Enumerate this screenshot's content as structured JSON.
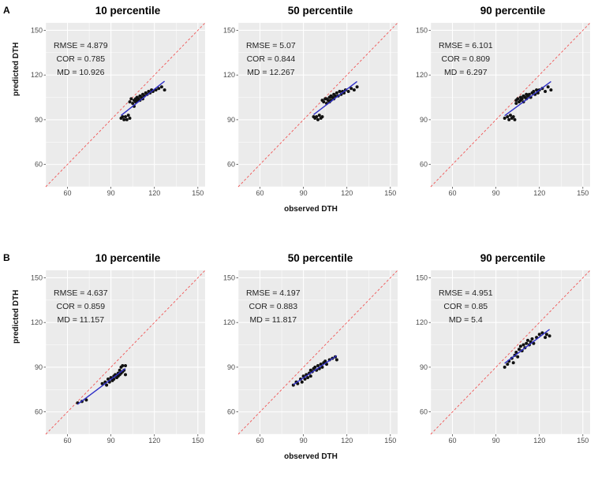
{
  "figure": {
    "rows": [
      {
        "label": "A",
        "ylabel": "predicted DTH",
        "xlabel": "observed DTH"
      },
      {
        "label": "B",
        "ylabel": "predicted DTH",
        "xlabel": "observed DTH"
      }
    ]
  },
  "chart_common": {
    "type": "scatter",
    "xlim": [
      45,
      155
    ],
    "ylim": [
      45,
      155
    ],
    "ticks": [
      60,
      90,
      120,
      150
    ],
    "minor_ticks": [
      45,
      75,
      105,
      135
    ],
    "grid": true,
    "xlabel": "observed DTH",
    "ylabel": "predicted DTH",
    "colors": {
      "panel_bg": "#ebebeb",
      "grid": "#ffffff",
      "point": "#111111",
      "fit_line": "#2e2ec7",
      "identity_line": "#f05555",
      "tick_label": "#4d4d4d"
    }
  },
  "chart_data": [
    {
      "row": "A",
      "title": "10 percentile",
      "stats": {
        "rmse": "RMSE = 4.879",
        "cor": "COR = 0.785",
        "md": "MD = 10.926"
      },
      "points": [
        [
          97,
          91
        ],
        [
          98,
          92
        ],
        [
          99,
          90
        ],
        [
          100,
          92
        ],
        [
          101,
          90
        ],
        [
          102,
          93
        ],
        [
          103,
          91
        ],
        [
          103,
          102
        ],
        [
          104,
          104
        ],
        [
          105,
          101
        ],
        [
          106,
          103
        ],
        [
          106,
          99
        ],
        [
          107,
          104
        ],
        [
          107,
          102
        ],
        [
          108,
          105
        ],
        [
          108,
          103
        ],
        [
          109,
          104
        ],
        [
          110,
          106
        ],
        [
          110,
          103
        ],
        [
          111,
          105
        ],
        [
          112,
          107
        ],
        [
          112,
          104
        ],
        [
          113,
          106
        ],
        [
          114,
          108
        ],
        [
          115,
          107
        ],
        [
          116,
          109
        ],
        [
          117,
          108
        ],
        [
          118,
          110
        ],
        [
          119,
          109
        ],
        [
          121,
          110
        ],
        [
          123,
          111
        ],
        [
          125,
          112
        ],
        [
          127,
          110
        ]
      ]
    },
    {
      "row": "A",
      "title": "50 percentile",
      "stats": {
        "rmse": "RMSE = 5.07",
        "cor": "COR = 0.844",
        "md": "MD = 12.267"
      },
      "points": [
        [
          97,
          92
        ],
        [
          98,
          91
        ],
        [
          99,
          92
        ],
        [
          100,
          90
        ],
        [
          101,
          93
        ],
        [
          102,
          91
        ],
        [
          103,
          92
        ],
        [
          103,
          103
        ],
        [
          104,
          102
        ],
        [
          105,
          104
        ],
        [
          106,
          101
        ],
        [
          106,
          104
        ],
        [
          107,
          103
        ],
        [
          108,
          105
        ],
        [
          108,
          102
        ],
        [
          109,
          106
        ],
        [
          109,
          103
        ],
        [
          110,
          105
        ],
        [
          111,
          107
        ],
        [
          111,
          104
        ],
        [
          112,
          106
        ],
        [
          113,
          108
        ],
        [
          114,
          106
        ],
        [
          115,
          109
        ],
        [
          116,
          107
        ],
        [
          117,
          109
        ],
        [
          118,
          108
        ],
        [
          119,
          110
        ],
        [
          121,
          109
        ],
        [
          123,
          111
        ],
        [
          125,
          110
        ],
        [
          127,
          112
        ]
      ]
    },
    {
      "row": "A",
      "title": "90 percentile",
      "stats": {
        "rmse": "RMSE = 6.101",
        "cor": "COR = 0.809",
        "md": "MD = 6.297"
      },
      "points": [
        [
          96,
          91
        ],
        [
          98,
          92
        ],
        [
          99,
          90
        ],
        [
          100,
          93
        ],
        [
          101,
          91
        ],
        [
          102,
          92
        ],
        [
          103,
          90
        ],
        [
          104,
          103
        ],
        [
          104,
          101
        ],
        [
          105,
          104
        ],
        [
          106,
          102
        ],
        [
          107,
          105
        ],
        [
          107,
          103
        ],
        [
          108,
          104
        ],
        [
          109,
          106
        ],
        [
          109,
          102
        ],
        [
          110,
          105
        ],
        [
          111,
          107
        ],
        [
          111,
          104
        ],
        [
          112,
          106
        ],
        [
          113,
          107
        ],
        [
          114,
          105
        ],
        [
          115,
          108
        ],
        [
          116,
          109
        ],
        [
          117,
          107
        ],
        [
          118,
          110
        ],
        [
          119,
          108
        ],
        [
          120,
          110
        ],
        [
          122,
          111
        ],
        [
          124,
          109
        ],
        [
          126,
          112
        ],
        [
          128,
          110
        ]
      ]
    },
    {
      "row": "B",
      "title": "10 percentile",
      "stats": {
        "rmse": "RMSE = 4.637",
        "cor": "COR = 0.859",
        "md": "MD = 11.157"
      },
      "points": [
        [
          67,
          66
        ],
        [
          70,
          67
        ],
        [
          73,
          68
        ],
        [
          84,
          79
        ],
        [
          86,
          80
        ],
        [
          87,
          78
        ],
        [
          88,
          82
        ],
        [
          89,
          80
        ],
        [
          90,
          83
        ],
        [
          91,
          81
        ],
        [
          92,
          84
        ],
        [
          92,
          82
        ],
        [
          93,
          85
        ],
        [
          94,
          83
        ],
        [
          95,
          86
        ],
        [
          95,
          84
        ],
        [
          96,
          88
        ],
        [
          96,
          85
        ],
        [
          97,
          90
        ],
        [
          97,
          86
        ],
        [
          98,
          91
        ],
        [
          98,
          87
        ],
        [
          99,
          88
        ],
        [
          100,
          85
        ],
        [
          100,
          91
        ]
      ]
    },
    {
      "row": "B",
      "title": "50 percentile",
      "stats": {
        "rmse": "RMSE = 4.197",
        "cor": "COR = 0.883",
        "md": "MD = 11.817"
      },
      "points": [
        [
          83,
          78
        ],
        [
          85,
          80
        ],
        [
          86,
          79
        ],
        [
          88,
          82
        ],
        [
          89,
          80
        ],
        [
          90,
          84
        ],
        [
          91,
          82
        ],
        [
          92,
          85
        ],
        [
          93,
          83
        ],
        [
          94,
          86
        ],
        [
          95,
          84
        ],
        [
          95,
          88
        ],
        [
          96,
          87
        ],
        [
          97,
          89
        ],
        [
          98,
          90
        ],
        [
          99,
          88
        ],
        [
          100,
          91
        ],
        [
          101,
          89
        ],
        [
          102,
          92
        ],
        [
          103,
          90
        ],
        [
          104,
          93
        ],
        [
          105,
          94
        ],
        [
          106,
          92
        ],
        [
          108,
          95
        ],
        [
          110,
          96
        ],
        [
          112,
          97
        ],
        [
          113,
          95
        ]
      ]
    },
    {
      "row": "B",
      "title": "90 percentile",
      "stats": {
        "rmse": "RMSE = 4.951",
        "cor": "COR = 0.85",
        "md": "MD = 5.4"
      },
      "points": [
        [
          96,
          90
        ],
        [
          98,
          92
        ],
        [
          99,
          94
        ],
        [
          101,
          96
        ],
        [
          102,
          93
        ],
        [
          103,
          98
        ],
        [
          104,
          100
        ],
        [
          105,
          97
        ],
        [
          106,
          102
        ],
        [
          107,
          104
        ],
        [
          108,
          101
        ],
        [
          109,
          105
        ],
        [
          110,
          103
        ],
        [
          111,
          106
        ],
        [
          112,
          108
        ],
        [
          113,
          105
        ],
        [
          114,
          107
        ],
        [
          115,
          109
        ],
        [
          116,
          106
        ],
        [
          118,
          110
        ],
        [
          120,
          112
        ],
        [
          122,
          113
        ],
        [
          124,
          110
        ],
        [
          125,
          112
        ],
        [
          127,
          111
        ]
      ]
    }
  ]
}
